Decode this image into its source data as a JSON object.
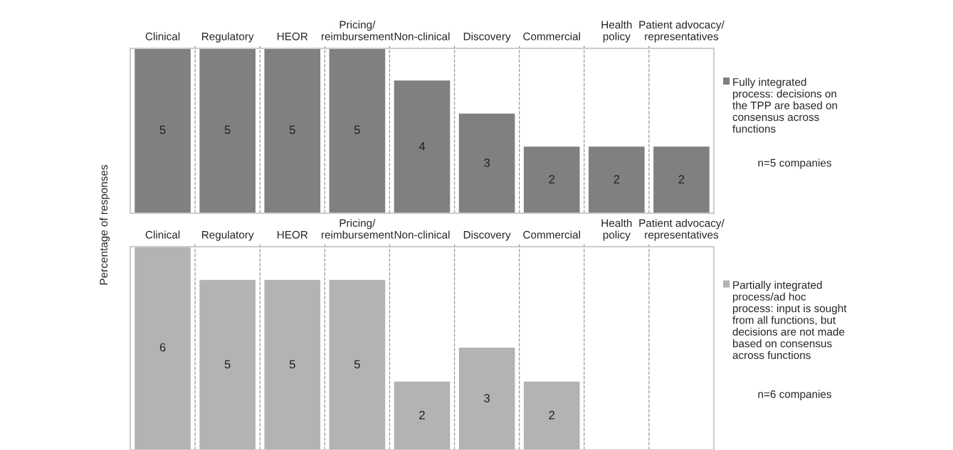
{
  "chart_data": [
    {
      "type": "bar",
      "ylabel": "Percentage of responses",
      "categories": [
        "Clinical",
        "Regulatory",
        "HEOR",
        "Pricing/\nreimbursement",
        "Non-clinical",
        "Discovery",
        "Commercial",
        "Health\npolicy",
        "Patient advocacy/\nrepresentatives"
      ],
      "series": [
        {
          "name": "Fully integrated\nprocess: decisions on\nthe TPP are based on\nconsensus across\nfunctions",
          "color": "#808080",
          "values": [
            5,
            5,
            5,
            5,
            4,
            3,
            2,
            2,
            2
          ]
        }
      ],
      "data_labels": true,
      "legend": "right",
      "grid": "x",
      "annotations": [
        "n=5 companies"
      ]
    },
    {
      "type": "bar",
      "categories": [
        "Clinical",
        "Regulatory",
        "HEOR",
        "Pricing/\nreimbursement",
        "Non-clinical",
        "Discovery",
        "Commercial",
        "Health\npolicy",
        "Patient advocacy/\nrepresentatives"
      ],
      "series": [
        {
          "name": "Partially integrated\nprocess/ad hoc\nprocess: input is sought\nfrom all functions, but\ndecisions are not made\nbased on consensus\nacross functions",
          "color": "#b3b3b3",
          "values": [
            6,
            5,
            5,
            5,
            2,
            3,
            2,
            0,
            0
          ],
          "value_labels": [
            "6",
            "5",
            "5",
            "5",
            "2",
            "3",
            "2",
            null,
            null
          ]
        }
      ],
      "legend": "right",
      "grid": "x",
      "annotations": [
        "n=6 companies"
      ]
    }
  ]
}
